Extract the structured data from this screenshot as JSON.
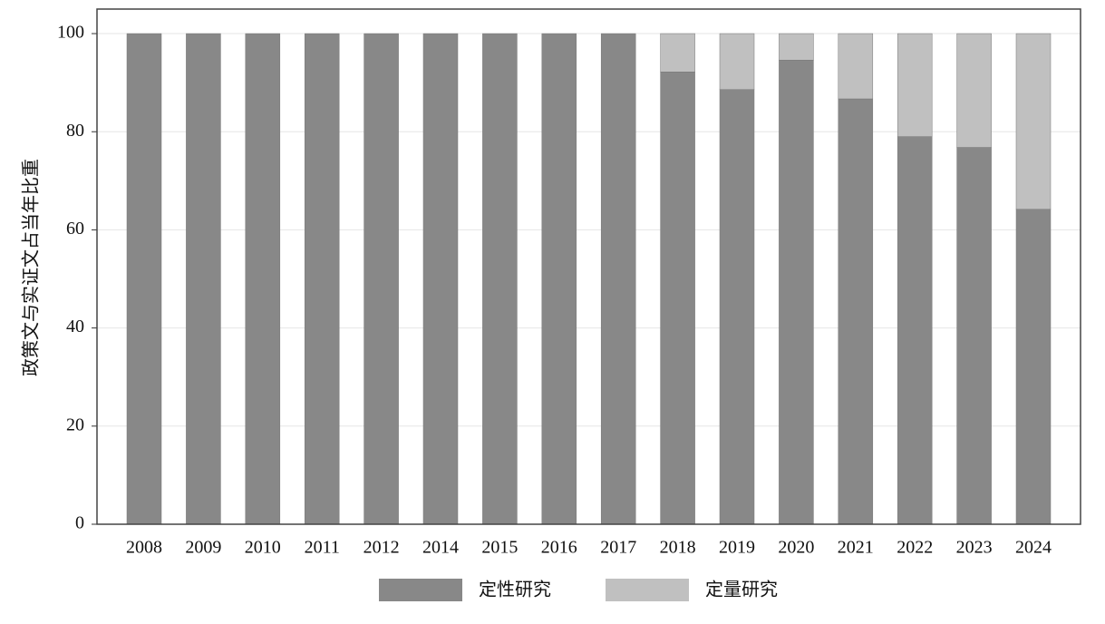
{
  "chart_data": {
    "type": "stacked_bar",
    "y_label": "政策文与实证文占当年比重",
    "categories": [
      "2008",
      "2009",
      "2010",
      "2011",
      "2012",
      "2014",
      "2015",
      "2016",
      "2017",
      "2018",
      "2019",
      "2020",
      "2021",
      "2022",
      "2023",
      "2024"
    ],
    "series": [
      {
        "name": "定性研究",
        "color": "#888888",
        "values": [
          100,
          100,
          100,
          100,
          100,
          100,
          100,
          100,
          100,
          92.2,
          88.6,
          94.6,
          86.7,
          79.0,
          76.8,
          64.2
        ]
      },
      {
        "name": "定量研究",
        "color": "#c0c0c0",
        "values": [
          0,
          0,
          0,
          0,
          0,
          0,
          0,
          0,
          0,
          7.8,
          11.4,
          5.4,
          13.3,
          21.0,
          23.2,
          35.8
        ]
      }
    ],
    "ylim": [
      0,
      105
    ],
    "yticks": [
      0,
      20,
      40,
      60,
      80,
      100
    ],
    "grid": true,
    "legend": "bottom"
  }
}
